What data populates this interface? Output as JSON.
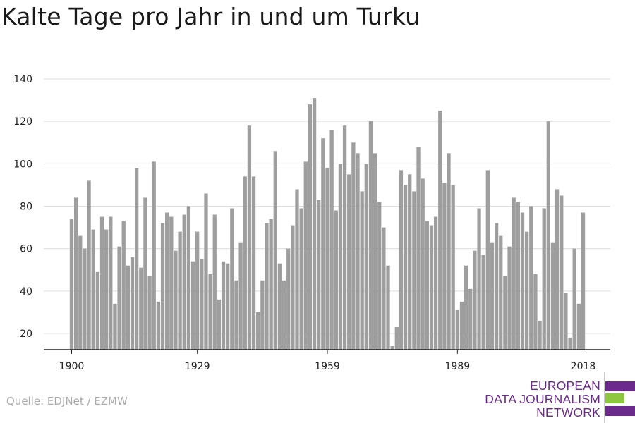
{
  "title": "Kalte Tage pro Jahr in und um Turku",
  "source": "Quelle: EDJNet / EZMW",
  "logo": {
    "lines": [
      "EUROPEAN",
      "DATA JOURNALISM",
      "NETWORK"
    ],
    "colors": {
      "text": "#6b2a8c",
      "bar_purple": "#6b2a8c",
      "bar_green": "#8dc63f"
    }
  },
  "chart_data": {
    "type": "bar",
    "x": [
      1900,
      1901,
      1902,
      1903,
      1904,
      1905,
      1906,
      1907,
      1908,
      1909,
      1910,
      1911,
      1912,
      1913,
      1914,
      1915,
      1916,
      1917,
      1918,
      1919,
      1920,
      1921,
      1922,
      1923,
      1924,
      1925,
      1926,
      1927,
      1928,
      1929,
      1930,
      1931,
      1932,
      1933,
      1934,
      1935,
      1936,
      1937,
      1938,
      1939,
      1940,
      1941,
      1942,
      1943,
      1944,
      1945,
      1946,
      1947,
      1948,
      1949,
      1950,
      1951,
      1952,
      1953,
      1954,
      1955,
      1956,
      1957,
      1958,
      1959,
      1960,
      1961,
      1962,
      1963,
      1964,
      1965,
      1966,
      1967,
      1968,
      1969,
      1970,
      1971,
      1972,
      1973,
      1974,
      1975,
      1976,
      1977,
      1978,
      1979,
      1980,
      1981,
      1982,
      1983,
      1984,
      1985,
      1986,
      1987,
      1988,
      1989,
      1990,
      1991,
      1992,
      1993,
      1994,
      1995,
      1996,
      1997,
      1998,
      1999,
      2000,
      2001,
      2002,
      2003,
      2004,
      2005,
      2006,
      2007,
      2008,
      2009,
      2010,
      2011,
      2012,
      2013,
      2014,
      2015,
      2016,
      2017,
      2018
    ],
    "values": [
      74,
      84,
      66,
      60,
      92,
      69,
      49,
      75,
      69,
      75,
      34,
      61,
      73,
      52,
      56,
      98,
      51,
      84,
      47,
      101,
      35,
      72,
      77,
      75,
      59,
      68,
      76,
      80,
      54,
      68,
      55,
      86,
      48,
      76,
      36,
      54,
      53,
      79,
      45,
      63,
      94,
      118,
      94,
      30,
      45,
      72,
      74,
      106,
      53,
      45,
      60,
      71,
      88,
      79,
      101,
      128,
      131,
      83,
      112,
      98,
      116,
      78,
      100,
      118,
      95,
      110,
      105,
      87,
      100,
      120,
      105,
      82,
      70,
      52,
      14,
      23,
      97,
      90,
      95,
      87,
      108,
      93,
      73,
      71,
      75,
      125,
      91,
      105,
      90,
      31,
      35,
      52,
      41,
      59,
      79,
      57,
      97,
      63,
      72,
      66,
      47,
      61,
      84,
      82,
      77,
      68,
      80,
      48,
      26,
      79,
      120,
      63,
      88,
      85,
      39,
      18,
      60,
      34,
      77
    ],
    "bar_color": "#9e9e9e",
    "xticks": [
      1900,
      1929,
      1959,
      1989,
      2018
    ],
    "yticks": [
      20,
      40,
      60,
      80,
      100,
      120,
      140
    ],
    "ylim": [
      12,
      143
    ],
    "grid": true,
    "xlabel": "",
    "ylabel": ""
  }
}
